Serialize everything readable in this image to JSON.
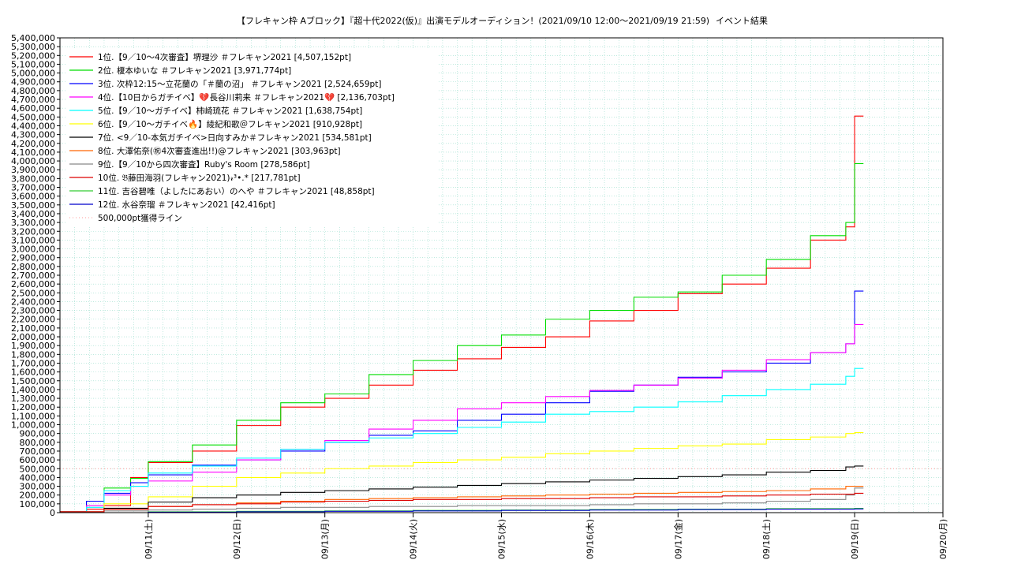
{
  "chart_data": {
    "type": "line",
    "title": "【フレキャン枠 Aブロック】『超十代2022(仮)』出演モデルオーディション！(2021/09/10 12:00〜2021/09/19 21:59)",
    "result_label": "イベント結果",
    "xlabel": "",
    "ylabel": "",
    "ylim": [
      0,
      5400000
    ],
    "y_tick_step": 100000,
    "x_ticks": [
      "09/11(土)",
      "09/12(日)",
      "09/13(月)",
      "09/14(火)",
      "09/15(水)",
      "09/16(木)",
      "09/17(金)",
      "09/18(土)",
      "09/19(日)",
      "09/20(月)"
    ],
    "grid": true,
    "legend_position": "top-left",
    "threshold": {
      "label": "500,000pt獲得ライン",
      "value": 500000,
      "color": "#ff9999"
    },
    "series": [
      {
        "name": "1位.【9／10〜4次審査】堺理沙 ＃フレキャン2021 [4,507,152pt]",
        "color": "#ff0000",
        "points": [
          [
            0,
            0.01
          ],
          [
            0.3,
            0.04
          ],
          [
            0.5,
            0.08
          ],
          [
            0.8,
            0.4
          ],
          [
            1.0,
            0.57
          ],
          [
            1.5,
            0.7
          ],
          [
            2.0,
            0.99
          ],
          [
            2.5,
            1.2
          ],
          [
            3.0,
            1.3
          ],
          [
            3.5,
            1.45
          ],
          [
            4.0,
            1.62
          ],
          [
            4.5,
            1.75
          ],
          [
            5.0,
            1.88
          ],
          [
            5.5,
            2.0
          ],
          [
            6.0,
            2.18
          ],
          [
            6.5,
            2.3
          ],
          [
            7.0,
            2.49
          ],
          [
            7.5,
            2.6
          ],
          [
            8.0,
            2.78
          ],
          [
            8.5,
            3.1
          ],
          [
            8.9,
            3.25
          ],
          [
            9.0,
            4.51
          ],
          [
            9.1,
            4.51
          ]
        ]
      },
      {
        "name": "2位. 榎本ゆいな ＃フレキャン2021 [3,971,774pt]",
        "color": "#00dd00",
        "points": [
          [
            0,
            0.01
          ],
          [
            0.3,
            0.13
          ],
          [
            0.5,
            0.28
          ],
          [
            0.8,
            0.39
          ],
          [
            1.0,
            0.58
          ],
          [
            1.5,
            0.77
          ],
          [
            2.0,
            1.05
          ],
          [
            2.5,
            1.25
          ],
          [
            3.0,
            1.35
          ],
          [
            3.5,
            1.57
          ],
          [
            4.0,
            1.73
          ],
          [
            4.5,
            1.9
          ],
          [
            5.0,
            2.02
          ],
          [
            5.5,
            2.2
          ],
          [
            6.0,
            2.3
          ],
          [
            6.5,
            2.45
          ],
          [
            7.0,
            2.51
          ],
          [
            7.5,
            2.7
          ],
          [
            8.0,
            2.88
          ],
          [
            8.5,
            3.15
          ],
          [
            8.9,
            3.3
          ],
          [
            9.0,
            3.97
          ],
          [
            9.1,
            3.97
          ]
        ]
      },
      {
        "name": "3位. 次枠12:15〜立花蘭の「＃蘭の沼」 ＃フレキャン2021 [2,524,659pt]",
        "color": "#0000ff",
        "points": [
          [
            0,
            0.01
          ],
          [
            0.3,
            0.13
          ],
          [
            0.5,
            0.22
          ],
          [
            0.8,
            0.34
          ],
          [
            1.0,
            0.43
          ],
          [
            1.5,
            0.54
          ],
          [
            2.0,
            0.6
          ],
          [
            2.5,
            0.7
          ],
          [
            3.0,
            0.8
          ],
          [
            3.5,
            0.88
          ],
          [
            4.0,
            0.93
          ],
          [
            4.5,
            1.05
          ],
          [
            5.0,
            1.12
          ],
          [
            5.5,
            1.25
          ],
          [
            6.0,
            1.38
          ],
          [
            6.5,
            1.45
          ],
          [
            7.0,
            1.54
          ],
          [
            7.5,
            1.6
          ],
          [
            8.0,
            1.7
          ],
          [
            8.5,
            1.82
          ],
          [
            8.9,
            1.92
          ],
          [
            9.0,
            2.52
          ],
          [
            9.1,
            2.52
          ]
        ]
      },
      {
        "name": "4位.【10日からガチイベ】💔長谷川莉来 ＃フレキャン2021💔 [2,136,703pt]",
        "color": "#ff00ff",
        "points": [
          [
            0,
            0.01
          ],
          [
            0.3,
            0.08
          ],
          [
            0.5,
            0.2
          ],
          [
            0.8,
            0.3
          ],
          [
            1.0,
            0.36
          ],
          [
            1.5,
            0.46
          ],
          [
            2.0,
            0.6
          ],
          [
            2.5,
            0.72
          ],
          [
            3.0,
            0.82
          ],
          [
            3.5,
            0.95
          ],
          [
            4.0,
            1.05
          ],
          [
            4.5,
            1.18
          ],
          [
            5.0,
            1.25
          ],
          [
            5.5,
            1.32
          ],
          [
            6.0,
            1.39
          ],
          [
            6.5,
            1.45
          ],
          [
            7.0,
            1.53
          ],
          [
            7.5,
            1.62
          ],
          [
            8.0,
            1.74
          ],
          [
            8.5,
            1.82
          ],
          [
            8.9,
            1.92
          ],
          [
            9.0,
            2.14
          ],
          [
            9.1,
            2.14
          ]
        ]
      },
      {
        "name": "5位.【9／10〜ガチイベ】柿崎琉花 ＃フレキャン2021 [1,638,754pt]",
        "color": "#00ffff",
        "points": [
          [
            0,
            0.01
          ],
          [
            0.3,
            0.06
          ],
          [
            0.5,
            0.25
          ],
          [
            0.8,
            0.3
          ],
          [
            1.0,
            0.45
          ],
          [
            1.5,
            0.53
          ],
          [
            2.0,
            0.62
          ],
          [
            2.5,
            0.72
          ],
          [
            3.0,
            0.8
          ],
          [
            3.5,
            0.85
          ],
          [
            4.0,
            0.9
          ],
          [
            4.5,
            0.97
          ],
          [
            5.0,
            1.03
          ],
          [
            5.5,
            1.12
          ],
          [
            6.0,
            1.15
          ],
          [
            6.5,
            1.2
          ],
          [
            7.0,
            1.26
          ],
          [
            7.5,
            1.33
          ],
          [
            8.0,
            1.4
          ],
          [
            8.5,
            1.46
          ],
          [
            8.9,
            1.55
          ],
          [
            9.0,
            1.64
          ],
          [
            9.1,
            1.64
          ]
        ]
      },
      {
        "name": "6位.【9／10〜ガチイベ🔥】綾紀和歌＠フレキャン2021 [910,928pt]",
        "color": "#ffff00",
        "points": [
          [
            0,
            0.01
          ],
          [
            0.5,
            0.1
          ],
          [
            1.0,
            0.18
          ],
          [
            1.5,
            0.3
          ],
          [
            2.0,
            0.4
          ],
          [
            2.5,
            0.45
          ],
          [
            3.0,
            0.5
          ],
          [
            3.5,
            0.53
          ],
          [
            4.0,
            0.57
          ],
          [
            4.5,
            0.6
          ],
          [
            5.0,
            0.63
          ],
          [
            5.5,
            0.67
          ],
          [
            6.0,
            0.7
          ],
          [
            6.5,
            0.73
          ],
          [
            7.0,
            0.76
          ],
          [
            7.5,
            0.78
          ],
          [
            8.0,
            0.83
          ],
          [
            8.5,
            0.86
          ],
          [
            8.9,
            0.9
          ],
          [
            9.0,
            0.91
          ],
          [
            9.1,
            0.91
          ]
        ]
      },
      {
        "name": "7位. <9／10-本気ガチイベ>日向すみか＃フレキャン2021 [534,581pt]",
        "color": "#000000",
        "points": [
          [
            0,
            0.01
          ],
          [
            0.5,
            0.05
          ],
          [
            1.0,
            0.12
          ],
          [
            1.5,
            0.17
          ],
          [
            2.0,
            0.2
          ],
          [
            2.5,
            0.23
          ],
          [
            3.0,
            0.25
          ],
          [
            3.5,
            0.27
          ],
          [
            4.0,
            0.29
          ],
          [
            4.5,
            0.31
          ],
          [
            5.0,
            0.33
          ],
          [
            5.5,
            0.35
          ],
          [
            6.0,
            0.37
          ],
          [
            6.5,
            0.39
          ],
          [
            7.0,
            0.41
          ],
          [
            7.5,
            0.43
          ],
          [
            8.0,
            0.46
          ],
          [
            8.5,
            0.48
          ],
          [
            8.9,
            0.52
          ],
          [
            9.0,
            0.53
          ],
          [
            9.1,
            0.53
          ]
        ]
      },
      {
        "name": "8位. 大澤佑奈(㊗4次審査進出!!)@フレキャン2021 [303,963pt]",
        "color": "#ff6600",
        "points": [
          [
            0,
            0.01
          ],
          [
            0.5,
            0.04
          ],
          [
            1.0,
            0.07
          ],
          [
            1.5,
            0.09
          ],
          [
            2.0,
            0.11
          ],
          [
            2.5,
            0.13
          ],
          [
            3.0,
            0.15
          ],
          [
            3.5,
            0.16
          ],
          [
            4.0,
            0.17
          ],
          [
            4.5,
            0.18
          ],
          [
            5.0,
            0.19
          ],
          [
            5.5,
            0.2
          ],
          [
            6.0,
            0.21
          ],
          [
            6.5,
            0.22
          ],
          [
            7.0,
            0.23
          ],
          [
            7.5,
            0.24
          ],
          [
            8.0,
            0.25
          ],
          [
            8.5,
            0.27
          ],
          [
            8.9,
            0.3
          ],
          [
            9.0,
            0.3
          ],
          [
            9.1,
            0.3
          ]
        ]
      },
      {
        "name": "9位.【9／10から四次審査】Ruby's Room [278,586pt]",
        "color": "#888888",
        "points": [
          [
            0,
            0.01
          ],
          [
            0.5,
            0.02
          ],
          [
            1.0,
            0.03
          ],
          [
            1.5,
            0.04
          ],
          [
            2.0,
            0.05
          ],
          [
            2.5,
            0.06
          ],
          [
            3.0,
            0.06
          ],
          [
            3.5,
            0.07
          ],
          [
            4.0,
            0.07
          ],
          [
            4.5,
            0.08
          ],
          [
            5.0,
            0.08
          ],
          [
            5.5,
            0.08
          ],
          [
            6.0,
            0.09
          ],
          [
            6.5,
            0.1
          ],
          [
            7.0,
            0.1
          ],
          [
            7.5,
            0.11
          ],
          [
            8.0,
            0.13
          ],
          [
            8.5,
            0.15
          ],
          [
            8.9,
            0.2
          ],
          [
            9.0,
            0.28
          ],
          [
            9.1,
            0.28
          ]
        ]
      },
      {
        "name": "10位. 𝔅藤田海羽(フレキャン2021)𝓇³•.* [217,781pt]",
        "color": "#dd0000",
        "points": [
          [
            0,
            0.01
          ],
          [
            0.5,
            0.04
          ],
          [
            1.0,
            0.07
          ],
          [
            1.5,
            0.09
          ],
          [
            2.0,
            0.1
          ],
          [
            2.5,
            0.12
          ],
          [
            3.0,
            0.13
          ],
          [
            3.5,
            0.14
          ],
          [
            4.0,
            0.15
          ],
          [
            4.5,
            0.15
          ],
          [
            5.0,
            0.16
          ],
          [
            5.5,
            0.16
          ],
          [
            6.0,
            0.17
          ],
          [
            6.5,
            0.18
          ],
          [
            7.0,
            0.18
          ],
          [
            7.5,
            0.19
          ],
          [
            8.0,
            0.2
          ],
          [
            8.5,
            0.21
          ],
          [
            8.9,
            0.21
          ],
          [
            9.0,
            0.22
          ],
          [
            9.1,
            0.22
          ]
        ]
      },
      {
        "name": "11位. 吉谷碧唯（よしたにあおい）のへや ＃フレキャン2021 [48,858pt]",
        "color": "#33cc33",
        "points": [
          [
            0,
            0.0
          ],
          [
            1.0,
            0.01
          ],
          [
            2.0,
            0.015
          ],
          [
            3.0,
            0.02
          ],
          [
            4.0,
            0.025
          ],
          [
            5.0,
            0.03
          ],
          [
            6.0,
            0.035
          ],
          [
            7.0,
            0.04
          ],
          [
            8.0,
            0.045
          ],
          [
            9.0,
            0.049
          ],
          [
            9.1,
            0.049
          ]
        ]
      },
      {
        "name": "12位. 水谷奈瑠 ＃フレキャン2021 [42,416pt]",
        "color": "#0000cc",
        "points": [
          [
            0,
            0.0
          ],
          [
            1.0,
            0.005
          ],
          [
            2.0,
            0.01
          ],
          [
            3.0,
            0.015
          ],
          [
            4.0,
            0.02
          ],
          [
            5.0,
            0.025
          ],
          [
            6.0,
            0.03
          ],
          [
            7.0,
            0.035
          ],
          [
            8.0,
            0.04
          ],
          [
            9.0,
            0.042
          ],
          [
            9.1,
            0.042
          ]
        ]
      }
    ]
  }
}
